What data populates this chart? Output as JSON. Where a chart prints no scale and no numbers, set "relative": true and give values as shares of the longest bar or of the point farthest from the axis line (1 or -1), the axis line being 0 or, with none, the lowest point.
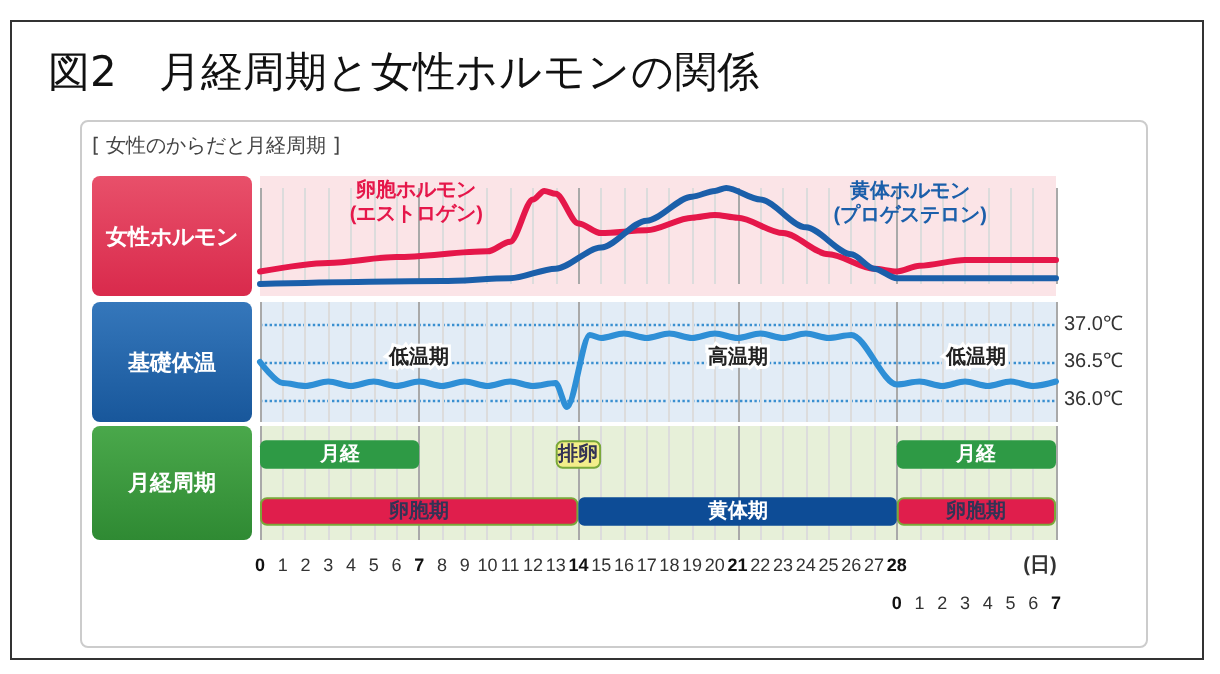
{
  "chart_data": [
    {
      "type": "line",
      "title": "図2　月経周期と女性ホルモンの関係",
      "subtitle": "[ 女性のからだと月経周期 ]",
      "ylabel": "女性ホルモン",
      "relative": true,
      "marker": "none",
      "grid": "x",
      "tick_labels": false,
      "xlim": [
        0,
        35
      ],
      "series": [
        {
          "name": "卵胞ホルモン\n(エストロゲン)",
          "color": "#e5174a",
          "x": [
            0,
            3,
            6,
            10,
            11,
            12,
            12.5,
            13,
            14,
            15,
            17,
            19,
            20,
            21,
            23,
            25,
            27,
            28,
            29,
            31,
            35
          ],
          "values": [
            0.13,
            0.22,
            0.28,
            0.34,
            0.44,
            0.88,
            0.97,
            0.94,
            0.63,
            0.53,
            0.56,
            0.69,
            0.72,
            0.69,
            0.53,
            0.31,
            0.16,
            0.13,
            0.19,
            0.25,
            0.25
          ]
        },
        {
          "name": "黄体ホルモン\n(プロゲステロン)",
          "color": "#1b5faa",
          "x": [
            0,
            8,
            11,
            13,
            15,
            17,
            19,
            20,
            20.5,
            22,
            24,
            26,
            27,
            28,
            35
          ],
          "values": [
            0,
            0.03,
            0.06,
            0.16,
            0.38,
            0.66,
            0.91,
            0.97,
            1,
            0.88,
            0.59,
            0.31,
            0.16,
            0.06,
            0.06
          ]
        }
      ]
    },
    {
      "type": "line",
      "ylabel": "基礎体温",
      "marker": "none",
      "grid": true,
      "tick_labels": "y",
      "xlim": [
        0,
        35
      ],
      "ylim": [
        35.7,
        37.3
      ],
      "yticks": [
        {
          "value": 36,
          "label": "36.0℃"
        },
        {
          "value": 36.5,
          "label": "36.5℃"
        },
        {
          "value": 37,
          "label": "37.0℃"
        }
      ],
      "x": [
        0,
        1,
        2,
        3,
        4,
        5,
        6,
        7,
        8,
        9,
        10,
        11,
        12,
        13,
        13.5,
        14.5,
        15,
        16,
        17,
        18,
        19,
        20,
        21,
        22,
        23,
        24,
        25,
        26,
        28,
        29,
        30,
        31,
        32,
        33,
        34,
        35
      ],
      "series": [
        {
          "color": "#2e8fd6",
          "values": [
            36.5,
            36.22,
            36.18,
            36.24,
            36.18,
            36.24,
            36.18,
            36.24,
            36.18,
            36.24,
            36.18,
            36.24,
            36.18,
            36.22,
            35.9,
            36.86,
            36.82,
            36.88,
            36.82,
            36.88,
            36.82,
            36.88,
            36.82,
            36.88,
            36.82,
            36.88,
            36.82,
            36.86,
            36.2,
            36.24,
            36.18,
            36.24,
            36.18,
            36.24,
            36.18,
            36.24
          ]
        }
      ],
      "annotations": [
        "低温期",
        "高温期",
        "低温期"
      ]
    },
    {
      "type": "bar",
      "orientation": "horizontal",
      "ylabel": "月経周期",
      "xlabel": "(日)",
      "grid": "x",
      "tick_labels": "x",
      "categories": [
        null,
        null
      ],
      "xlim": [
        0,
        35
      ],
      "xticks": [
        0,
        1,
        2,
        3,
        4,
        5,
        6,
        7,
        8,
        9,
        10,
        11,
        12,
        13,
        14,
        15,
        16,
        17,
        18,
        19,
        20,
        21,
        22,
        23,
        24,
        25,
        26,
        27,
        28
      ],
      "x2lim": [
        -28,
        7
      ],
      "x2ticks": [
        0,
        1,
        2,
        3,
        4,
        5,
        6,
        7
      ],
      "series": [
        {
          "color": "#2e9a45",
          "values": [
            7,
            null
          ],
          "base": [
            0,
            null
          ],
          "value_labels": [
            "月経",
            null
          ]
        },
        {
          "color": "#2e9a45",
          "values": [
            7,
            null
          ],
          "base": [
            28,
            null
          ],
          "value_labels": [
            "月経",
            null
          ]
        },
        {
          "color": "#f3ee8a",
          "values": [
            2,
            null
          ],
          "base": [
            13,
            null
          ],
          "value_labels": [
            "排卵",
            null
          ]
        },
        {
          "color": "#e01e4c",
          "values": [
            null,
            14
          ],
          "base": [
            null,
            0
          ],
          "value_labels": [
            null,
            "卵胞期"
          ]
        },
        {
          "color": "#0d4c96",
          "values": [
            null,
            14
          ],
          "base": [
            null,
            14
          ],
          "value_labels": [
            null,
            "黄体期"
          ]
        },
        {
          "color": "#e01e4c",
          "values": [
            null,
            7
          ],
          "base": [
            null,
            28
          ],
          "value_labels": [
            null,
            "卵胞期"
          ]
        }
      ]
    }
  ]
}
